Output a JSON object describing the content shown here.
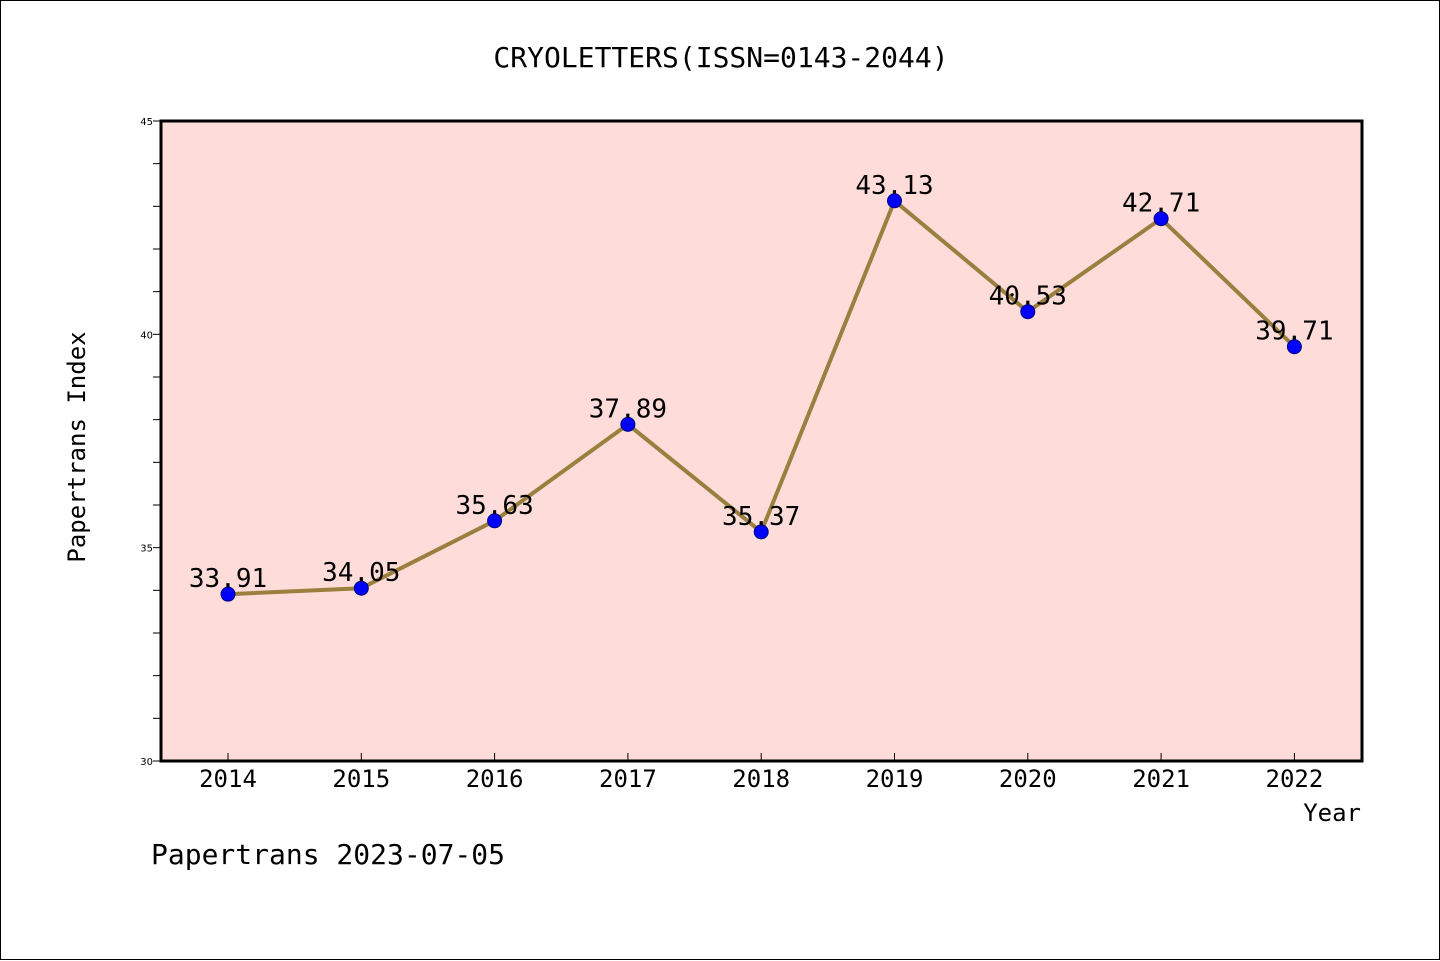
{
  "chart_data": {
    "type": "line",
    "title": "CRYOLETTERS(ISSN=0143-2044)",
    "xlabel": "Year",
    "ylabel": "Papertrans Index",
    "categories": [
      "2014",
      "2015",
      "2016",
      "2017",
      "2018",
      "2019",
      "2020",
      "2021",
      "2022"
    ],
    "series": [
      {
        "values": [
          33.91,
          34.05,
          35.63,
          37.89,
          35.37,
          43.13,
          40.53,
          42.71,
          39.71
        ],
        "labels": [
          "33.91",
          "34.05",
          "35.63",
          "37.89",
          "35.37",
          "43.13",
          "40.53",
          "42.71",
          "39.71"
        ]
      }
    ],
    "ylim": [
      30,
      45
    ],
    "yticks": [
      "30",
      "35",
      "40",
      "45"
    ],
    "ytick_values": [
      30,
      35,
      40,
      45
    ],
    "grid": false,
    "legend": false,
    "colors": {
      "plot_background": "#FDDCDA",
      "line": "#9A7F3E",
      "marker": "#0000FF"
    }
  },
  "footer": "Papertrans 2023-07-05"
}
